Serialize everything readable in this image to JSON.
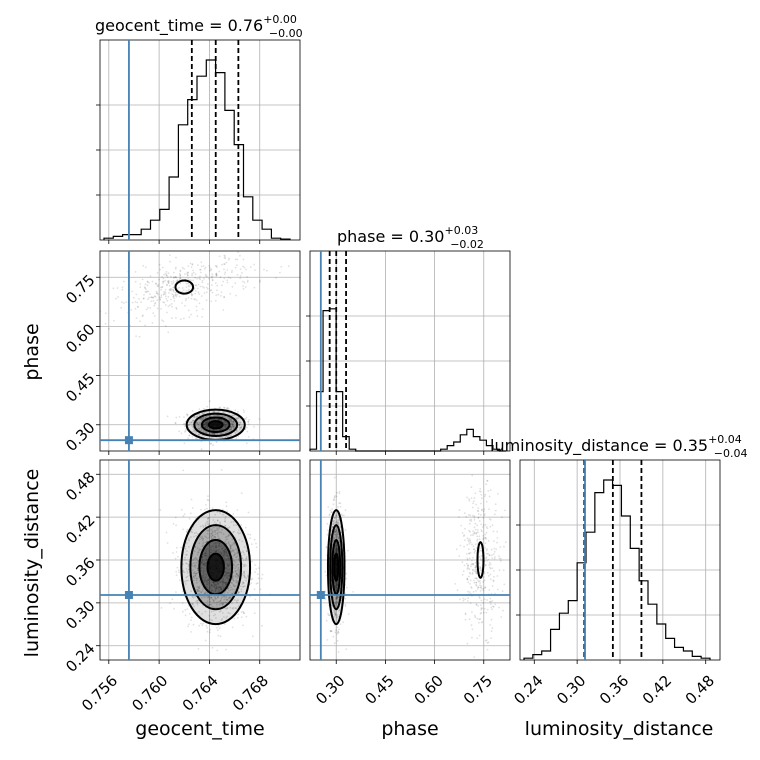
{
  "params": [
    "geocent_time",
    "phase",
    "luminosity_distance"
  ],
  "titles": [
    {
      "param": "geocent_time",
      "median": "0.76",
      "plus": "+0.00",
      "minus": "−0.00"
    },
    {
      "param": "phase",
      "median": "0.30",
      "plus": "+0.03",
      "minus": "−0.02"
    },
    {
      "param": "luminosity_distance",
      "median": "0.35",
      "plus": "+0.04",
      "minus": "−0.04"
    }
  ],
  "axis_labels": {
    "x": [
      "geocent_time",
      "phase",
      "luminosity_distance"
    ],
    "y": [
      "phase",
      "luminosity_distance"
    ]
  },
  "colors": {
    "truth": "#4682b4",
    "line": "#000000",
    "grid": "#b0b0b0"
  },
  "chart_data": {
    "type": "corner",
    "grid": true,
    "ranges": {
      "geocent_time": [
        0.7553,
        0.7712
      ],
      "phase": [
        0.22,
        0.83
      ],
      "luminosity_distance": [
        0.22,
        0.5
      ]
    },
    "ticks": {
      "geocent_time": [
        0.756,
        0.76,
        0.764,
        0.768
      ],
      "phase": [
        0.3,
        0.45,
        0.6,
        0.75
      ],
      "luminosity_distance": [
        0.24,
        0.3,
        0.36,
        0.42,
        0.48
      ]
    },
    "tick_labels": {
      "geocent_time": [
        "0.756",
        "0.760",
        "0.764",
        "0.768"
      ],
      "phase": [
        "0.30",
        "0.45",
        "0.60",
        "0.75"
      ],
      "luminosity_distance": [
        "0.24",
        "0.30",
        "0.36",
        "0.42",
        "0.48"
      ]
    },
    "truths": {
      "geocent_time": 0.7576,
      "phase": 0.253,
      "luminosity_distance": 0.311
    },
    "quantiles": {
      "geocent_time": [
        0.7626,
        0.7645,
        0.7663
      ],
      "phase": [
        0.28,
        0.3,
        0.33
      ],
      "luminosity_distance": [
        0.31,
        0.35,
        0.39
      ]
    },
    "histograms": [
      {
        "param": "geocent_time",
        "values": [
          0.01,
          0.02,
          0.03,
          0.03,
          0.06,
          0.11,
          0.17,
          0.35,
          0.64,
          0.78,
          0.91,
          1.0,
          0.93,
          0.72,
          0.53,
          0.24,
          0.11,
          0.06,
          0.01,
          0.005
        ]
      },
      {
        "param": "phase",
        "values": [
          0.01,
          0.33,
          0.78,
          0.79,
          0.33,
          0.08,
          0.01,
          0,
          0,
          0,
          0,
          0,
          0,
          0,
          0,
          0,
          0,
          0,
          0,
          0,
          0.01,
          0.03,
          0.05,
          0.09,
          0.12,
          0.08,
          0.06,
          0.03,
          0.01,
          0
        ]
      },
      {
        "param": "luminosity_distance",
        "values": [
          0.01,
          0.03,
          0.05,
          0.17,
          0.26,
          0.33,
          0.54,
          0.71,
          0.93,
          1.0,
          0.97,
          0.8,
          0.62,
          0.44,
          0.31,
          0.2,
          0.12,
          0.07,
          0.05,
          0.02,
          0.01
        ]
      }
    ],
    "pairs": [
      {
        "x": "geocent_time",
        "y": "phase",
        "modes": [
          {
            "x": 0.7645,
            "y": 0.3,
            "sx": 0.0011,
            "sy": 0.022,
            "n": 900
          },
          {
            "x": 0.762,
            "y": 0.72,
            "sx": 0.0028,
            "sy": 0.04,
            "n": 450,
            "tilt": 0.45
          }
        ]
      },
      {
        "x": "geocent_time",
        "y": "luminosity_distance",
        "modes": [
          {
            "x": 0.7645,
            "y": 0.35,
            "sx": 0.0013,
            "sy": 0.038,
            "n": 1300
          }
        ]
      },
      {
        "x": "phase",
        "y": "luminosity_distance",
        "modes": [
          {
            "x": 0.3,
            "y": 0.35,
            "sx": 0.012,
            "sy": 0.038,
            "n": 900
          },
          {
            "x": 0.74,
            "y": 0.36,
            "sx": 0.03,
            "sy": 0.05,
            "n": 400
          }
        ]
      }
    ]
  }
}
